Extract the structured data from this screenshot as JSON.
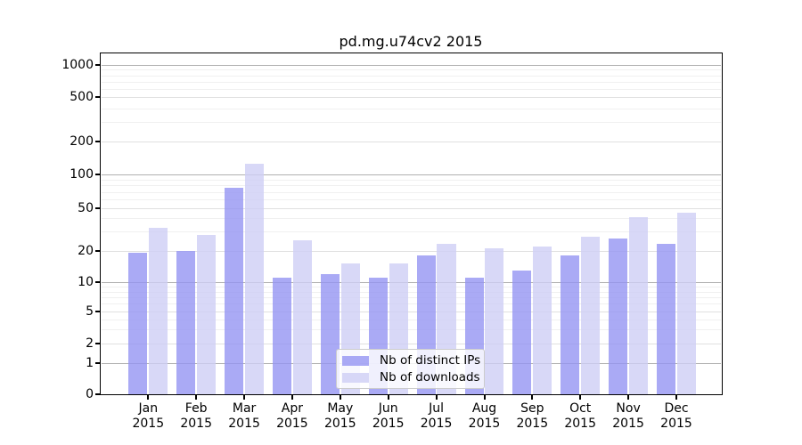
{
  "title": "pd.mg.u74cv2 2015",
  "legend": {
    "items": [
      {
        "label": "Nb of distinct IPs",
        "color": "#9595f3"
      },
      {
        "label": "Nb of downloads",
        "color": "#cecef5"
      }
    ]
  },
  "x_axis": {
    "months": [
      "Jan",
      "Feb",
      "Mar",
      "Apr",
      "May",
      "Jun",
      "Jul",
      "Aug",
      "Sep",
      "Oct",
      "Nov",
      "Dec"
    ],
    "year": "2015"
  },
  "y_axis": {
    "tick_labels": [
      "0",
      "1",
      "2",
      "5",
      "10",
      "20",
      "50",
      "100",
      "200",
      "500",
      "1000"
    ]
  },
  "chart_data": {
    "type": "bar",
    "title": "pd.mg.u74cv2 2015",
    "categories": [
      "Jan 2015",
      "Feb 2015",
      "Mar 2015",
      "Apr 2015",
      "May 2015",
      "Jun 2015",
      "Jul 2015",
      "Aug 2015",
      "Sep 2015",
      "Oct 2015",
      "Nov 2015",
      "Dec 2015"
    ],
    "series": [
      {
        "name": "Nb of distinct IPs",
        "color": "#9595f3",
        "values": [
          19,
          20,
          76,
          11,
          12,
          11,
          18,
          11,
          13,
          18,
          26,
          23
        ]
      },
      {
        "name": "Nb of downloads",
        "color": "#cecef5",
        "values": [
          33,
          28,
          125,
          25,
          15,
          15,
          23,
          21,
          22,
          27,
          41,
          45
        ]
      }
    ],
    "y_scale": "log-like",
    "y_ticks": [
      0,
      1,
      2,
      5,
      10,
      20,
      50,
      100,
      200,
      500,
      1000
    ],
    "ylim": [
      0,
      1400
    ],
    "grid": "horizontal major+minor",
    "legend_position": "inside bottom-center",
    "xlabel": "",
    "ylabel": ""
  }
}
